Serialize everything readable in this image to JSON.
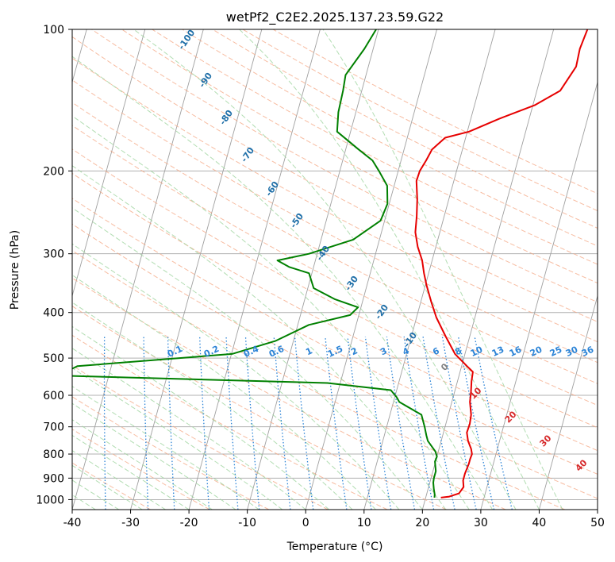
{
  "chart_data": {
    "type": "line",
    "title": "wetPf2_C2E2.2025.137.23.59.G22",
    "xlabel": "Temperature (°C)",
    "ylabel": "Pressure (hPa)",
    "xlim": [
      -40,
      50
    ],
    "ylim": [
      1050,
      100
    ],
    "y_scale": "log",
    "x_ticks": [
      "-40",
      "-30",
      "-20",
      "-10",
      "0",
      "10",
      "20",
      "30",
      "40",
      "50"
    ],
    "y_ticks": [
      "100",
      "200",
      "300",
      "400",
      "500",
      "600",
      "700",
      "800",
      "900",
      "1000"
    ],
    "grid": true,
    "colors": {
      "temperature": "#e60000",
      "dewpoint": "#008000",
      "isotherm": "#a0a0a0",
      "dry_adiabat": "#f4a582",
      "moist_adiabat": "#9fd49f",
      "mixing_ratio": "#2b83d6",
      "dry_adiabat_label": "#1f6fa8",
      "moist_adiabat_label": "#d62728",
      "zero_label": "#808080",
      "lcl_curve": "#d2b48c"
    },
    "dry_adiabat_labels": [
      "-100",
      "-90",
      "-80",
      "-70",
      "-60",
      "-50",
      "-40",
      "-30",
      "-20",
      "-10"
    ],
    "moist_adiabat_labels": [
      "0",
      "10",
      "20",
      "30",
      "40"
    ],
    "mixing_ratio_labels": [
      "0.1",
      "0.2",
      "0.4",
      "0.6",
      "1",
      "1.5",
      "2",
      "3",
      "4",
      "6",
      "8",
      "10",
      "13",
      "16",
      "20",
      "25",
      "30",
      "36"
    ],
    "series": [
      {
        "key": "temperature",
        "points": [
          [
            25.8,
            100
          ],
          [
            25.4,
            110
          ],
          [
            25.6,
            120
          ],
          [
            24.0,
            135
          ],
          [
            20.3,
            145
          ],
          [
            14.8,
            155
          ],
          [
            10.3,
            165
          ],
          [
            6.5,
            170
          ],
          [
            4.8,
            180
          ],
          [
            4.3,
            190
          ],
          [
            3.7,
            200
          ],
          [
            3.6,
            210
          ],
          [
            4.6,
            230
          ],
          [
            5.3,
            250
          ],
          [
            5.8,
            270
          ],
          [
            6.9,
            290
          ],
          [
            8.3,
            310
          ],
          [
            9.2,
            330
          ],
          [
            10.2,
            350
          ],
          [
            11.8,
            380
          ],
          [
            13.4,
            410
          ],
          [
            15.9,
            450
          ],
          [
            18.3,
            490
          ],
          [
            20.9,
            520
          ],
          [
            22.2,
            535
          ],
          [
            22.4,
            560
          ],
          [
            22.8,
            590
          ],
          [
            23.1,
            620
          ],
          [
            23.9,
            660
          ],
          [
            24.1,
            690
          ],
          [
            24.0,
            720
          ],
          [
            24.6,
            750
          ],
          [
            25.5,
            780
          ],
          [
            25.9,
            800
          ],
          [
            25.8,
            820
          ],
          [
            25.8,
            840
          ],
          [
            25.6,
            880
          ],
          [
            25.6,
            910
          ],
          [
            26.0,
            940
          ],
          [
            25.5,
            970
          ],
          [
            24.0,
            985
          ],
          [
            22.6,
            990
          ]
        ]
      },
      {
        "key": "dewpoint",
        "points": [
          [
            -10.4,
            100
          ],
          [
            -11.5,
            110
          ],
          [
            -13.5,
            125
          ],
          [
            -13.2,
            135
          ],
          [
            -13.0,
            150
          ],
          [
            -12.3,
            165
          ],
          [
            -7.8,
            180
          ],
          [
            -4.9,
            190
          ],
          [
            -3.3,
            200
          ],
          [
            -1.2,
            215
          ],
          [
            -0.3,
            235
          ],
          [
            -0.7,
            255
          ],
          [
            -4.5,
            280
          ],
          [
            -11.4,
            300
          ],
          [
            -16.5,
            310
          ],
          [
            -14.2,
            320
          ],
          [
            -10.5,
            330
          ],
          [
            -9.0,
            355
          ],
          [
            -4.8,
            375
          ],
          [
            -0.5,
            390
          ],
          [
            -1.5,
            405
          ],
          [
            -8.1,
            425
          ],
          [
            -13.1,
            460
          ],
          [
            -19.9,
            490
          ],
          [
            -45.8,
            520
          ],
          [
            -47.0,
            530
          ],
          [
            -47.8,
            545
          ],
          [
            -2.2,
            565
          ],
          [
            9.0,
            585
          ],
          [
            10.3,
            605
          ],
          [
            11.0,
            620
          ],
          [
            15.4,
            660
          ],
          [
            16.5,
            700
          ],
          [
            17.2,
            730
          ],
          [
            17.7,
            750
          ],
          [
            19.5,
            790
          ],
          [
            20.0,
            810
          ],
          [
            19.9,
            830
          ],
          [
            20.5,
            870
          ],
          [
            20.5,
            900
          ],
          [
            20.6,
            920
          ],
          [
            21.0,
            950
          ],
          [
            21.4,
            975
          ],
          [
            21.5,
            990
          ]
        ]
      }
    ]
  }
}
